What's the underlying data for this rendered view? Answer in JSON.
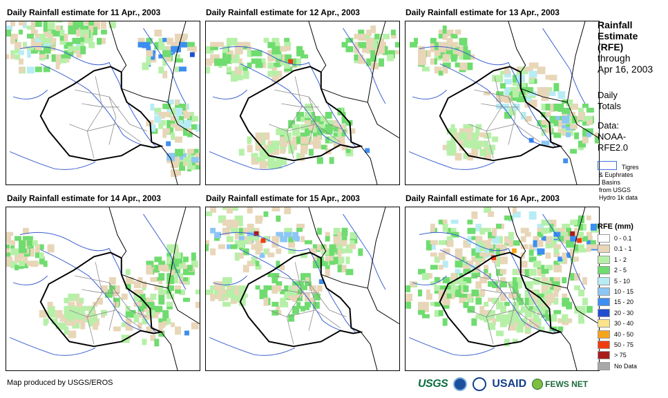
{
  "panels": [
    {
      "title": "Daily Rainfall estimate for 11 Apr., 2003"
    },
    {
      "title": "Daily Rainfall estimate for 12 Apr., 2003"
    },
    {
      "title": "Daily Rainfall estimate for 13 Apr., 2003"
    },
    {
      "title": "Daily Rainfall estimate for 14 Apr., 2003"
    },
    {
      "title": "Daily Rainfall estimate for 15 Apr., 2003"
    },
    {
      "title": "Daily Rainfall estimate for 16 Apr., 2003"
    }
  ],
  "sidebar": {
    "title_line1": "Rainfall",
    "title_line2": "Estimate",
    "title_line3": "(RFE)",
    "through": "through",
    "date": "Apr 16, 2003",
    "daily": "Daily",
    "totals": "Totals",
    "data_label": "Data:",
    "data_source1": "NOAA-",
    "data_source2": "RFE2.0",
    "basin_line1": "Tigres",
    "basin_line2": "& Euphrates",
    "basin_line3": "Basins",
    "basin_line4": "from USGS",
    "basin_line5": "Hydro 1k data"
  },
  "legend": {
    "title": "RFE (mm)",
    "items": [
      {
        "label": "0 - 0.1",
        "color": "#ffffff"
      },
      {
        "label": "0.1 - 1",
        "color": "#e8d6b8"
      },
      {
        "label": "1 - 2",
        "color": "#b6f0a8"
      },
      {
        "label": "2 - 5",
        "color": "#6fdc6f"
      },
      {
        "label": "5 - 10",
        "color": "#b8ecf4"
      },
      {
        "label": "10 - 15",
        "color": "#8cc6f4"
      },
      {
        "label": "15 - 20",
        "color": "#3c8ef0"
      },
      {
        "label": "20 - 30",
        "color": "#1f4fd0"
      },
      {
        "label": "30 - 40",
        "color": "#fbe48a"
      },
      {
        "label": "40 - 50",
        "color": "#f6a41c"
      },
      {
        "label": "50 - 75",
        "color": "#f03c0c"
      },
      {
        "label": "> 75",
        "color": "#a81c1c"
      },
      {
        "label": "No Data",
        "color": "#a8a8a8"
      }
    ]
  },
  "footer": {
    "credit": "Map produced by USGS/EROS",
    "logo_usgs": "USGS",
    "logo_usaid": "USAID",
    "logo_fews": "FEWS NET"
  },
  "map_colors": {
    "river": "#3a5fd0",
    "border": "#000000",
    "province": "#8a8a8a"
  }
}
